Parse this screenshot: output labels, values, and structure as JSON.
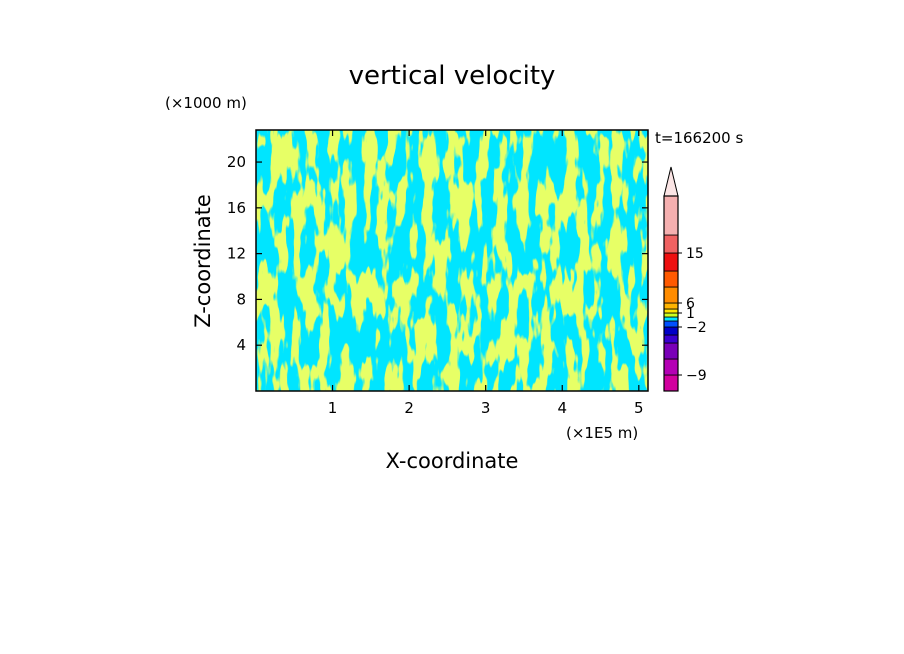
{
  "chart_data": {
    "type": "heatmap",
    "title": "vertical velocity",
    "xlabel": "X-coordinate",
    "ylabel": "Z-coordinate",
    "x_unit": "(×1E5 m)",
    "y_unit": "(×1000 m)",
    "time_label": "t=166200 s",
    "xlim": [
      0,
      5.12
    ],
    "ylim": [
      0,
      22.8
    ],
    "x_ticks": [
      1,
      2,
      3,
      4,
      5
    ],
    "y_ticks": [
      4,
      8,
      12,
      16,
      20
    ],
    "field_colors": {
      "negative": "#00e5ff",
      "positive": "#ccff22"
    },
    "colorbar": {
      "tick_labels": [
        "15",
        "6",
        "1",
        "−2",
        "−9"
      ],
      "tick_values": [
        15,
        6,
        1,
        -2,
        -9
      ],
      "levels": [
        {
          "color": "#d2009e"
        },
        {
          "color": "#b400b4"
        },
        {
          "color": "#7a00b8"
        },
        {
          "color": "#3a00d0"
        },
        {
          "color": "#0000c8"
        },
        {
          "color": "#0050ff"
        },
        {
          "color": "#00e5ff"
        },
        {
          "color": "#ccff22"
        },
        {
          "color": "#ffe600"
        },
        {
          "color": "#ffb400"
        },
        {
          "color": "#ff8c00"
        },
        {
          "color": "#ff5a00"
        },
        {
          "color": "#ee1010"
        },
        {
          "color": "#f06262"
        },
        {
          "color": "#f5b0b0"
        }
      ],
      "extend_color": "#fbe5e5"
    }
  }
}
